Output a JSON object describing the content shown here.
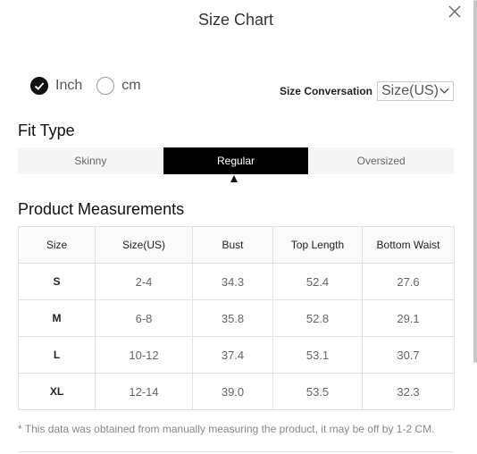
{
  "header": {
    "title": "Size Chart",
    "close_icon": "close-icon"
  },
  "units": {
    "options": [
      {
        "label": "Inch",
        "checked": true
      },
      {
        "label": "cm",
        "checked": false
      }
    ]
  },
  "conversation": {
    "label": "Size Conversation",
    "selected": "Size(US)"
  },
  "fit_type": {
    "title": "Fit Type",
    "tabs": [
      "Skinny",
      "Regular",
      "Oversized"
    ],
    "active": "Regular"
  },
  "measurements": {
    "title": "Product Measurements",
    "columns": [
      "Size",
      "Size(US)",
      "Bust",
      "Top Length",
      "Bottom Waist"
    ],
    "rows": [
      [
        "S",
        "2-4",
        "34.3",
        "52.4",
        "27.6"
      ],
      [
        "M",
        "6-8",
        "35.8",
        "52.8",
        "29.1"
      ],
      [
        "L",
        "10-12",
        "37.4",
        "53.1",
        "30.7"
      ],
      [
        "XL",
        "12-14",
        "39.0",
        "53.5",
        "32.3"
      ]
    ]
  },
  "note": "* This data was obtained from manually measuring the product, it may be off by 1-2 CM.",
  "colors": {
    "active_tab": "#000000",
    "tab_bg": "#f5f5f5",
    "border": "#e2e2e2"
  }
}
